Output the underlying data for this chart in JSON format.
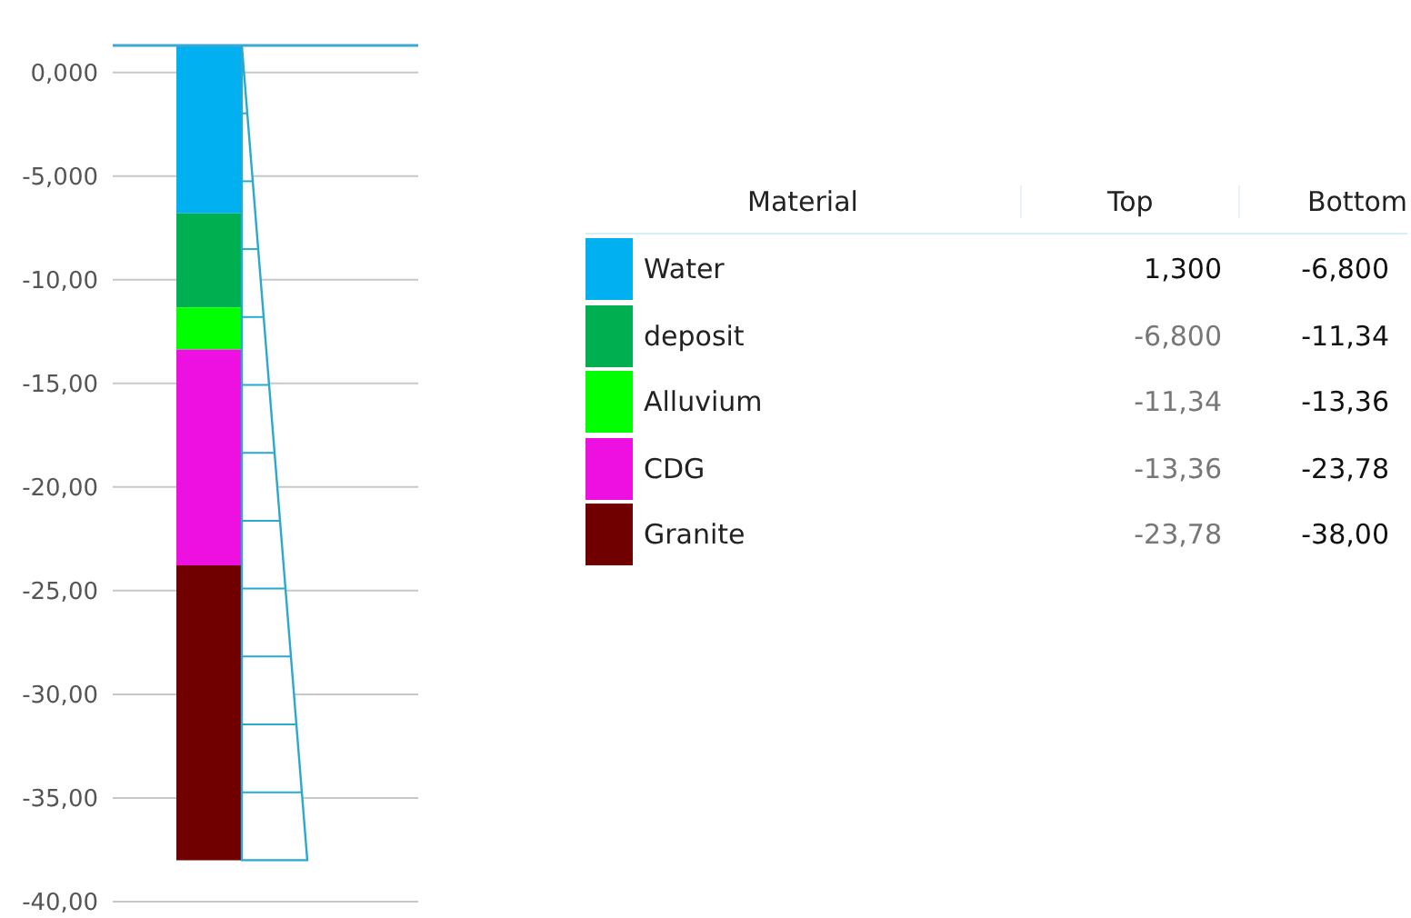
{
  "chart_data": {
    "type": "bar",
    "categories": [
      null
    ],
    "series": [
      {
        "name": "Water",
        "color": "#00b0f0",
        "base": [
          1.3
        ],
        "values": [
          -8.1
        ]
      },
      {
        "name": "deposit",
        "color": "#00b050",
        "base": [
          -6.8
        ],
        "values": [
          -4.54
        ]
      },
      {
        "name": "Alluvium",
        "color": "#00ff00",
        "base": [
          -11.34
        ],
        "values": [
          -2.02
        ]
      },
      {
        "name": "CDG",
        "color": "#ee10e0",
        "base": [
          -13.36
        ],
        "values": [
          -10.42
        ]
      },
      {
        "name": "Granite",
        "color": "#700000",
        "base": [
          -23.78
        ],
        "values": [
          -14.22
        ]
      }
    ],
    "ylim": [
      -40,
      1.3
    ],
    "yticks": [
      {
        "value": 0,
        "label": "0,000"
      },
      {
        "value": -5,
        "label": "-5,000"
      },
      {
        "value": -10,
        "label": "-10,00"
      },
      {
        "value": -15,
        "label": "-15,00"
      },
      {
        "value": -20,
        "label": "-20,00"
      },
      {
        "value": -25,
        "label": "-25,00"
      },
      {
        "value": -30,
        "label": "-30,00"
      },
      {
        "value": -35,
        "label": "-35,00"
      },
      {
        "value": -40,
        "label": "-40,00"
      }
    ],
    "grid": "y",
    "legend": "right",
    "ref_lines": [
      {
        "axis": "y",
        "value": 1.3,
        "color": "#3aa8d0"
      }
    ],
    "annotations": [
      "Material",
      "Top",
      "Bottom",
      "1,300",
      "-6,800",
      "-6,800",
      "-11,34",
      "-11,34",
      "-13,36",
      "-13,36",
      "-23,78",
      "-23,78",
      "-38,00"
    ]
  }
}
